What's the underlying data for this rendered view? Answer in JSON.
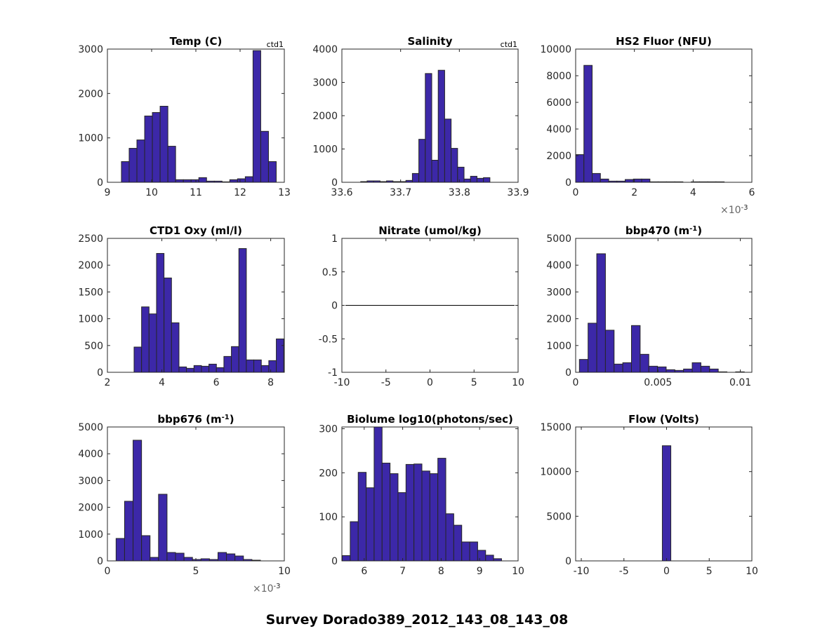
{
  "figure_title": "Survey Dorado389_2012_143_08_143_08",
  "colors": {
    "bar_fill": "#3c28a8",
    "bar_edge": "#262626",
    "axis": "#262626",
    "line": "#000000"
  },
  "chart_data": [
    {
      "type": "bar",
      "title": "Temp (C)",
      "title_sup": "",
      "annotation": "ctd1",
      "xlim": [
        9,
        13
      ],
      "ylim": [
        0,
        3000
      ],
      "xticks": [
        9,
        10,
        11,
        12,
        13
      ],
      "xtick_labels": [
        "9",
        "10",
        "11",
        "12",
        "13"
      ],
      "yticks": [
        0,
        1000,
        2000,
        3000
      ],
      "ytick_labels": [
        "0",
        "1000",
        "2000",
        "3000"
      ],
      "x_exponent": "",
      "bins": {
        "start": 9.317,
        "width": 0.175,
        "counts": [
          466,
          765,
          954,
          1493,
          1572,
          1713,
          812,
          58,
          58,
          58,
          105,
          26,
          26,
          10,
          58,
          79,
          126,
          2966,
          1148,
          466
        ]
      }
    },
    {
      "type": "bar",
      "title": "Salinity",
      "title_sup": "",
      "annotation": "ctd1",
      "xlim": [
        33.6,
        33.9
      ],
      "ylim": [
        0,
        4000
      ],
      "xticks": [
        33.6,
        33.7,
        33.8,
        33.9
      ],
      "xtick_labels": [
        "33.6",
        "33.7",
        "33.8",
        "33.9"
      ],
      "yticks": [
        0,
        1000,
        2000,
        3000,
        4000
      ],
      "ytick_labels": [
        "0",
        "1000",
        "2000",
        "3000",
        "4000"
      ],
      "x_exponent": "",
      "bins": {
        "start": 33.632,
        "width": 0.011,
        "counts": [
          21,
          42,
          42,
          21,
          42,
          21,
          21,
          56,
          265,
          1291,
          3266,
          663,
          3364,
          1898,
          1019,
          454,
          98,
          181,
          119,
          140
        ]
      }
    },
    {
      "type": "bar",
      "title": "HS2 Fluor (NFU)",
      "title_sup": "",
      "annotation": "",
      "xlim": [
        0,
        6
      ],
      "ylim": [
        0,
        10000
      ],
      "xticks": [
        0,
        2,
        4,
        6
      ],
      "xtick_labels": [
        "0",
        "2",
        "4",
        "6"
      ],
      "yticks": [
        0,
        2000,
        4000,
        6000,
        8000,
        10000
      ],
      "ytick_labels": [
        "0",
        "2000",
        "4000",
        "6000",
        "8000",
        "10000"
      ],
      "x_exponent": "-3",
      "bins": {
        "start": 0,
        "width": 0.281,
        "counts": [
          2077,
          8777,
          663,
          244,
          87,
          87,
          209,
          244,
          244,
          35,
          35,
          35,
          35,
          0,
          35,
          35,
          35,
          35
        ]
      }
    },
    {
      "type": "bar",
      "title": "CTD1 Oxy (ml/l)",
      "title_sup": "",
      "annotation": "",
      "xlim": [
        2,
        8.5
      ],
      "ylim": [
        0,
        2500
      ],
      "xticks": [
        2,
        4,
        6,
        8
      ],
      "xtick_labels": [
        "2",
        "4",
        "6",
        "8"
      ],
      "yticks": [
        0,
        500,
        1000,
        1500,
        2000,
        2500
      ],
      "ytick_labels": [
        "0",
        "500",
        "1000",
        "1500",
        "2000",
        "2500"
      ],
      "x_exponent": "",
      "bins": {
        "start": 2.98,
        "width": 0.275,
        "counts": [
          471,
          1221,
          1090,
          2219,
          1761,
          924,
          100,
          74,
          126,
          113,
          152,
          87,
          296,
          480,
          2310,
          231,
          231,
          126,
          218,
          623
        ]
      }
    },
    {
      "type": "line",
      "title": "Nitrate (umol/kg)",
      "title_sup": "",
      "annotation": "",
      "xlim": [
        -10,
        10
      ],
      "ylim": [
        -1,
        1
      ],
      "xticks": [
        -10,
        -5,
        0,
        5,
        10
      ],
      "xtick_labels": [
        "-10",
        "-5",
        "0",
        "5",
        "10"
      ],
      "yticks": [
        -1,
        -0.5,
        0,
        0.5,
        1
      ],
      "ytick_labels": [
        "-1",
        "-0.5",
        "0",
        "0.5",
        "1"
      ],
      "x_exponent": "",
      "line": {
        "x": [
          -9.6,
          9.6
        ],
        "y": [
          0,
          0
        ]
      }
    },
    {
      "type": "bar",
      "title": "bbp470 (m",
      "title_sup": "-1",
      "title_end": ")",
      "annotation": "",
      "xlim": [
        0,
        0.0107
      ],
      "ylim": [
        0,
        5000
      ],
      "xticks": [
        0,
        0.005,
        0.01
      ],
      "xtick_labels": [
        "0",
        "0.005",
        "0.01"
      ],
      "yticks": [
        0,
        1000,
        2000,
        3000,
        4000,
        5000
      ],
      "ytick_labels": [
        "0",
        "1000",
        "2000",
        "3000",
        "4000",
        "5000"
      ],
      "x_exponent": "",
      "bins": {
        "start": 0.000227,
        "width": 0.000527,
        "counts": [
          480,
          1833,
          4426,
          1572,
          306,
          358,
          1746,
          672,
          227,
          201,
          96,
          70,
          122,
          358,
          227,
          122,
          17,
          0,
          17
        ]
      }
    },
    {
      "type": "bar",
      "title": "bbp676 (m",
      "title_sup": "-1",
      "title_end": ")",
      "annotation": "",
      "xlim": [
        0,
        10
      ],
      "ylim": [
        0,
        5000
      ],
      "xticks": [
        0,
        5,
        10
      ],
      "xtick_labels": [
        "0",
        "5",
        "10"
      ],
      "yticks": [
        0,
        1000,
        2000,
        3000,
        4000,
        5000
      ],
      "ytick_labels": [
        "0",
        "1000",
        "2000",
        "3000",
        "4000",
        "5000"
      ],
      "x_exponent": "-3",
      "bins": {
        "start": 0.49,
        "width": 0.48,
        "counts": [
          838,
          2226,
          4505,
          943,
          131,
          2488,
          314,
          288,
          131,
          52,
          79,
          52,
          314,
          262,
          183,
          52,
          26
        ]
      }
    },
    {
      "type": "bar",
      "title": "Biolume log10(photons/sec)",
      "title_sup": "",
      "annotation": "",
      "xlim": [
        5.42,
        10
      ],
      "ylim": [
        0,
        304
      ],
      "xticks": [
        6,
        7,
        8,
        9,
        10
      ],
      "xtick_labels": [
        "6",
        "7",
        "8",
        "9",
        "10"
      ],
      "yticks": [
        0,
        100,
        200,
        300
      ],
      "ytick_labels": [
        "0",
        "100",
        "200",
        "300"
      ],
      "x_exponent": "",
      "bins": {
        "start": 5.43,
        "width": 0.207,
        "counts": [
          12,
          89,
          201,
          166,
          320,
          222,
          198,
          155,
          219,
          220,
          204,
          198,
          233,
          107,
          81,
          43,
          43,
          24,
          13,
          5
        ]
      }
    },
    {
      "type": "bar",
      "title": "Flow (Volts)",
      "title_sup": "",
      "annotation": "",
      "xlim": [
        -10.66,
        10
      ],
      "ylim": [
        0,
        15000
      ],
      "xticks": [
        -10,
        -5,
        0,
        5,
        10
      ],
      "xtick_labels": [
        "-10",
        "-5",
        "0",
        "5",
        "10"
      ],
      "yticks": [
        0,
        5000,
        10000,
        15000
      ],
      "ytick_labels": [
        "0",
        "5000",
        "10000",
        "15000"
      ],
      "x_exponent": "",
      "bins": {
        "start": -0.5,
        "width": 1.0,
        "counts": [
          12900
        ]
      }
    }
  ]
}
